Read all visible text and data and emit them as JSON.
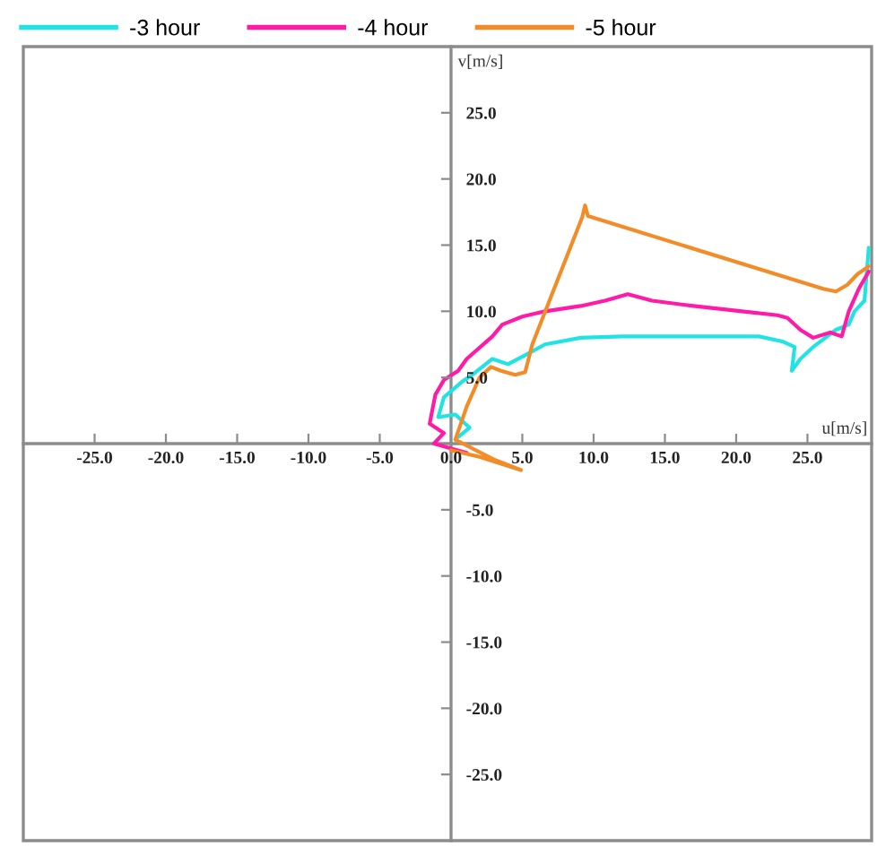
{
  "chart_data": {
    "type": "line",
    "series": [
      {
        "name": "-3 hour",
        "color": "#22e3e3",
        "x": [
          0.5,
          1.3,
          0.3,
          -0.9,
          -0.5,
          0.8,
          1.5,
          2.9,
          4.0,
          5.4,
          6.6,
          9.1,
          12.0,
          14.9,
          18.3,
          21.6,
          23.3,
          24.1,
          23.9,
          24.5,
          25.4,
          27.0,
          27.9,
          28.3,
          29.0,
          29.3
        ],
        "values": [
          0.5,
          1.2,
          2.2,
          2.0,
          3.5,
          4.7,
          5.2,
          6.4,
          6.0,
          6.8,
          7.5,
          8.0,
          8.1,
          8.1,
          8.1,
          8.1,
          7.7,
          7.3,
          5.5,
          6.4,
          7.3,
          8.6,
          9.0,
          10.0,
          10.8,
          14.8
        ]
      },
      {
        "name": "-4 hour",
        "color": "#ff1aa8",
        "x": [
          1.1,
          -1.2,
          -0.5,
          -1.5,
          -1.1,
          -0.5,
          0.5,
          1.1,
          2.9,
          3.6,
          5.0,
          6.6,
          9.1,
          10.8,
          12.4,
          14.1,
          17.0,
          20.4,
          22.9,
          23.6,
          24.5,
          25.4,
          26.6,
          27.4,
          27.9,
          28.6,
          29.3
        ],
        "values": [
          -0.7,
          0.0,
          0.8,
          1.5,
          3.7,
          4.8,
          5.5,
          6.4,
          8.1,
          9.0,
          9.6,
          10.0,
          10.4,
          10.8,
          11.3,
          10.8,
          10.4,
          10.0,
          9.7,
          9.5,
          8.6,
          8.0,
          8.4,
          8.1,
          10.0,
          11.7,
          13.0
        ]
      },
      {
        "name": "-5 hour",
        "color": "#f28c28",
        "x": [
          0.0,
          2.0,
          4.9,
          3.0,
          0.3,
          1.1,
          2.0,
          2.8,
          3.5,
          4.5,
          5.2,
          5.7,
          9.2,
          9.4,
          9.6,
          26.1,
          27.0,
          27.8,
          28.5,
          29.3
        ],
        "values": [
          -0.5,
          -1.0,
          -2.0,
          -1.2,
          0.3,
          2.8,
          5.0,
          5.8,
          5.5,
          5.2,
          5.4,
          7.5,
          17.1,
          18.0,
          17.2,
          11.7,
          11.5,
          12.0,
          12.8,
          13.4
        ]
      }
    ],
    "xlabel": "u[m/s]",
    "ylabel": "v[m/s]",
    "xlim": [
      -30,
      29.5
    ],
    "ylim": [
      -30,
      30
    ],
    "xticks": [
      {
        "value": -25,
        "label": "-25.0"
      },
      {
        "value": -20,
        "label": "-20.0"
      },
      {
        "value": -15,
        "label": "-15.0"
      },
      {
        "value": -10,
        "label": "-10.0"
      },
      {
        "value": -5,
        "label": "-5.0"
      },
      {
        "value": 0,
        "label": "0.0"
      },
      {
        "value": 5,
        "label": "5.0"
      },
      {
        "value": 10,
        "label": "10.0"
      },
      {
        "value": 15,
        "label": "15.0"
      },
      {
        "value": 20,
        "label": "20.0"
      },
      {
        "value": 25,
        "label": "25.0"
      }
    ],
    "yticks": [
      {
        "value": -25,
        "label": "-25.0"
      },
      {
        "value": -20,
        "label": "-20.0"
      },
      {
        "value": -15,
        "label": "-15.0"
      },
      {
        "value": -10,
        "label": "-10.0"
      },
      {
        "value": -5,
        "label": "-5.0"
      },
      {
        "value": 5,
        "label": "5.0"
      },
      {
        "value": 10,
        "label": "10.0"
      },
      {
        "value": 15,
        "label": "15.0"
      },
      {
        "value": 20,
        "label": "20.0"
      },
      {
        "value": 25,
        "label": "25.0"
      }
    ],
    "legend": "top",
    "line_style": "solid"
  }
}
